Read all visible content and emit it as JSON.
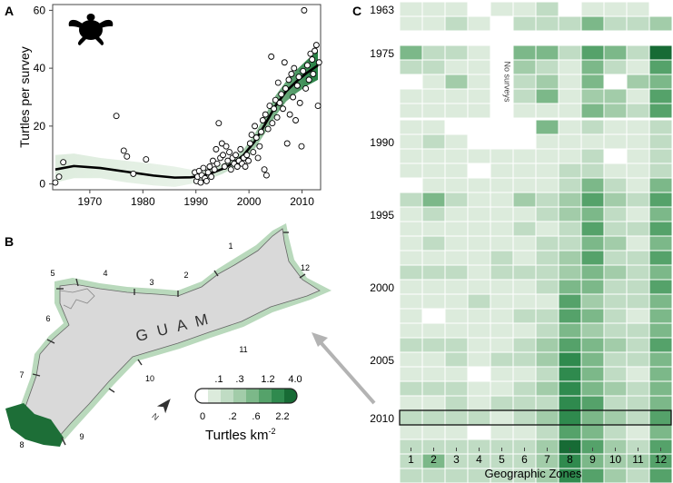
{
  "panels": {
    "a": {
      "letter": "A"
    },
    "b": {
      "letter": "B"
    },
    "c": {
      "letter": "C"
    }
  },
  "chart_data": [
    {
      "type": "scatter",
      "panel": "A",
      "ylabel": "Turtles per survey",
      "xlabel": "",
      "xlim": [
        1963,
        2013.5
      ],
      "ylim": [
        -2,
        62
      ],
      "xticks": [
        1970,
        1980,
        1990,
        2000,
        2010
      ],
      "yticks": [
        0,
        20,
        40,
        60
      ],
      "icon": "sea-turtle-silhouette",
      "trend_color": "#1b7a3a",
      "points": [
        [
          1963.5,
          0.5
        ],
        [
          1964.2,
          2.5
        ],
        [
          1965.0,
          7.5
        ],
        [
          1975.0,
          23.5
        ],
        [
          1976.4,
          11.5
        ],
        [
          1977.0,
          9.5
        ],
        [
          1978.2,
          3.5
        ],
        [
          1980.6,
          8.5
        ],
        [
          1989.8,
          4
        ],
        [
          1990.1,
          1
        ],
        [
          1990.3,
          2.5
        ],
        [
          1990.6,
          4.5
        ],
        [
          1990.9,
          0.5
        ],
        [
          1991.1,
          3
        ],
        [
          1991.4,
          5.5
        ],
        [
          1991.7,
          2
        ],
        [
          1992.0,
          1
        ],
        [
          1992.3,
          4
        ],
        [
          1992.6,
          6
        ],
        [
          1992.9,
          2.5
        ],
        [
          1993.2,
          8
        ],
        [
          1993.5,
          5
        ],
        [
          1993.8,
          12
        ],
        [
          1994.0,
          7
        ],
        [
          1994.3,
          21
        ],
        [
          1994.6,
          9
        ],
        [
          1994.9,
          14
        ],
        [
          1995.1,
          10
        ],
        [
          1995.4,
          6
        ],
        [
          1995.7,
          13
        ],
        [
          1996.0,
          8
        ],
        [
          1996.3,
          11
        ],
        [
          1996.6,
          5
        ],
        [
          1996.9,
          9
        ],
        [
          1997.2,
          7
        ],
        [
          1997.5,
          10
        ],
        [
          1997.8,
          6
        ],
        [
          1998.1,
          8
        ],
        [
          1998.4,
          12
        ],
        [
          1998.7,
          7
        ],
        [
          1999.0,
          9
        ],
        [
          1999.3,
          6
        ],
        [
          1999.6,
          10
        ],
        [
          1999.9,
          8
        ],
        [
          2000.2,
          14
        ],
        [
          2000.5,
          17
        ],
        [
          2000.8,
          11
        ],
        [
          2001.1,
          20
        ],
        [
          2001.4,
          16
        ],
        [
          2001.7,
          9
        ],
        [
          2002.0,
          13
        ],
        [
          2002.3,
          18
        ],
        [
          2002.6,
          22
        ],
        [
          2002.9,
          5
        ],
        [
          2003.1,
          24
        ],
        [
          2003.3,
          3
        ],
        [
          2003.6,
          19
        ],
        [
          2003.9,
          27
        ],
        [
          2004.2,
          44
        ],
        [
          2004.4,
          21
        ],
        [
          2004.7,
          26
        ],
        [
          2005.0,
          29
        ],
        [
          2005.3,
          23
        ],
        [
          2005.5,
          35
        ],
        [
          2005.8,
          28
        ],
        [
          2006.1,
          31
        ],
        [
          2006.4,
          26
        ],
        [
          2006.7,
          42
        ],
        [
          2006.9,
          33
        ],
        [
          2007.2,
          14
        ],
        [
          2007.5,
          36
        ],
        [
          2007.7,
          24
        ],
        [
          2008.0,
          38
        ],
        [
          2008.3,
          30
        ],
        [
          2008.5,
          40
        ],
        [
          2008.8,
          22
        ],
        [
          2009.1,
          34
        ],
        [
          2009.4,
          37
        ],
        [
          2009.6,
          28
        ],
        [
          2009.9,
          13
        ],
        [
          2010.2,
          39
        ],
        [
          2010.4,
          60
        ],
        [
          2010.7,
          33
        ],
        [
          2011.0,
          41
        ],
        [
          2011.3,
          36
        ],
        [
          2011.6,
          45
        ],
        [
          2011.9,
          43
        ],
        [
          2012.1,
          38
        ],
        [
          2012.4,
          46
        ],
        [
          2012.7,
          48
        ],
        [
          2013.0,
          27
        ],
        [
          2013.2,
          42
        ]
      ],
      "trend": [
        [
          1963.5,
          5
        ],
        [
          1967,
          6.2
        ],
        [
          1972,
          5.5
        ],
        [
          1977,
          4.2
        ],
        [
          1982,
          2.9
        ],
        [
          1986,
          2.2
        ],
        [
          1989,
          2.3
        ],
        [
          1991,
          2.8
        ],
        [
          1993,
          3.8
        ],
        [
          1995,
          5.2
        ],
        [
          1997,
          7.2
        ],
        [
          1999,
          10
        ],
        [
          2001,
          14.5
        ],
        [
          2003,
          20.5
        ],
        [
          2005,
          27
        ],
        [
          2007,
          32
        ],
        [
          2009,
          35.5
        ],
        [
          2011,
          38.5
        ],
        [
          2013,
          41
        ]
      ],
      "band_upper": [
        [
          1963.5,
          10
        ],
        [
          1967,
          10.5
        ],
        [
          1972,
          9
        ],
        [
          1977,
          8
        ],
        [
          1982,
          7
        ],
        [
          1986,
          6
        ],
        [
          1989,
          5
        ],
        [
          1991,
          5
        ],
        [
          1993,
          5.5
        ],
        [
          1995,
          7
        ],
        [
          1997,
          9
        ],
        [
          1999,
          12
        ],
        [
          2001,
          17
        ],
        [
          2003,
          23.5
        ],
        [
          2005,
          30.5
        ],
        [
          2007,
          35.5
        ],
        [
          2009,
          39.5
        ],
        [
          2011,
          43
        ],
        [
          2013,
          46
        ]
      ],
      "band_lower": [
        [
          1963.5,
          0.5
        ],
        [
          1967,
          2
        ],
        [
          1972,
          2
        ],
        [
          1977,
          0.5
        ],
        [
          1982,
          -0.5
        ],
        [
          1986,
          -1
        ],
        [
          1989,
          0
        ],
        [
          1991,
          0.8
        ],
        [
          1993,
          2
        ],
        [
          1995,
          3.5
        ],
        [
          1997,
          5.5
        ],
        [
          1999,
          8
        ],
        [
          2001,
          12
        ],
        [
          2003,
          17.5
        ],
        [
          2005,
          23.5
        ],
        [
          2007,
          28.5
        ],
        [
          2009,
          31.5
        ],
        [
          2011,
          34
        ],
        [
          2013,
          36
        ]
      ]
    },
    {
      "type": "heatmap",
      "panel": "C",
      "xlabel": "Geographic Zones",
      "zones": [
        "1",
        "2",
        "3",
        "4",
        "5",
        "6",
        "7",
        "8",
        "9",
        "10",
        "11",
        "12"
      ],
      "year_tick_labels": [
        "1963",
        "1975",
        "1990",
        "1995",
        "2000",
        "2005",
        "2010"
      ],
      "no_survey_label": "No surveys",
      "color_scale": {
        "breaks": [
          0,
          0.1,
          0.2,
          0.3,
          0.6,
          1.2,
          2.2,
          4.0
        ],
        "colors": [
          "#ffffff",
          "#dcebdc",
          "#c0dcc4",
          "#a2cca9",
          "#7cb889",
          "#55a26a",
          "#2f8a4e",
          "#176b35"
        ]
      },
      "legend_position": "bottom",
      "highlighted_year": "2010",
      "levels": [
        [
          1,
          1,
          1,
          0,
          1,
          1,
          2,
          0,
          1,
          1,
          1,
          0
        ],
        [
          1,
          1,
          2,
          1,
          0,
          2,
          2,
          2,
          4,
          2,
          2,
          3
        ],
        [
          4,
          2,
          2,
          1,
          null,
          4,
          4,
          2,
          5,
          4,
          2,
          7
        ],
        [
          2,
          2,
          1,
          1,
          null,
          3,
          2,
          1,
          4,
          2,
          1,
          5
        ],
        [
          0,
          1,
          3,
          1,
          null,
          2,
          3,
          1,
          4,
          0,
          3,
          4
        ],
        [
          1,
          1,
          1,
          1,
          null,
          2,
          4,
          1,
          3,
          3,
          1,
          5
        ],
        [
          1,
          1,
          1,
          1,
          null,
          1,
          1,
          1,
          4,
          3,
          2,
          5
        ],
        [
          1,
          1,
          0,
          0,
          0,
          0,
          4,
          1,
          2,
          1,
          1,
          2
        ],
        [
          1,
          2,
          1,
          0,
          0,
          0,
          1,
          1,
          1,
          1,
          1,
          2
        ],
        [
          1,
          1,
          1,
          1,
          1,
          1,
          1,
          1,
          2,
          0,
          1,
          2
        ],
        [
          1,
          1,
          1,
          0,
          1,
          1,
          1,
          2,
          2,
          1,
          1,
          2
        ],
        [
          0,
          1,
          1,
          1,
          1,
          1,
          1,
          2,
          4,
          2,
          1,
          4
        ],
        [
          2,
          4,
          2,
          1,
          1,
          3,
          2,
          3,
          5,
          3,
          2,
          5
        ],
        [
          1,
          2,
          1,
          1,
          1,
          1,
          2,
          3,
          4,
          2,
          1,
          4
        ],
        [
          1,
          1,
          1,
          1,
          1,
          2,
          1,
          2,
          5,
          2,
          2,
          5
        ],
        [
          1,
          2,
          1,
          1,
          1,
          1,
          2,
          2,
          4,
          3,
          1,
          4
        ],
        [
          1,
          1,
          1,
          1,
          2,
          1,
          2,
          3,
          5,
          2,
          2,
          5
        ],
        [
          2,
          2,
          2,
          1,
          2,
          2,
          2,
          3,
          4,
          3,
          2,
          4
        ],
        [
          1,
          1,
          1,
          1,
          1,
          1,
          2,
          4,
          4,
          2,
          2,
          5
        ],
        [
          1,
          1,
          1,
          2,
          1,
          1,
          1,
          5,
          3,
          2,
          2,
          4
        ],
        [
          1,
          0,
          1,
          1,
          1,
          2,
          2,
          5,
          4,
          2,
          1,
          4
        ],
        [
          1,
          1,
          1,
          1,
          1,
          1,
          2,
          4,
          3,
          2,
          2,
          4
        ],
        [
          2,
          2,
          2,
          1,
          1,
          2,
          3,
          5,
          4,
          3,
          2,
          5
        ],
        [
          1,
          1,
          2,
          1,
          2,
          2,
          3,
          6,
          4,
          2,
          2,
          4
        ],
        [
          1,
          1,
          1,
          0,
          1,
          1,
          2,
          6,
          4,
          2,
          1,
          4
        ],
        [
          2,
          2,
          2,
          1,
          1,
          2,
          3,
          6,
          4,
          3,
          2,
          4
        ],
        [
          1,
          1,
          2,
          1,
          2,
          2,
          2,
          6,
          5,
          2,
          2,
          4
        ],
        [
          2,
          2,
          2,
          2,
          1,
          2,
          3,
          6,
          4,
          3,
          2,
          5
        ],
        [
          1,
          1,
          1,
          0,
          1,
          1,
          2,
          5,
          4,
          2,
          1,
          4
        ],
        [
          2,
          2,
          2,
          2,
          2,
          2,
          3,
          7,
          5,
          3,
          2,
          5
        ],
        [
          2,
          4,
          2,
          2,
          2,
          2,
          3,
          6,
          4,
          3,
          3,
          5
        ],
        [
          2,
          2,
          2,
          2,
          2,
          2,
          3,
          6,
          5,
          3,
          2,
          5
        ]
      ]
    }
  ],
  "map": {
    "island_name": "G U A M",
    "zone_labels": [
      "1",
      "2",
      "3",
      "4",
      "5",
      "6",
      "7",
      "8",
      "9",
      "10",
      "11",
      "12"
    ],
    "north_label": "N",
    "legend": {
      "title": "Turtles km",
      "title_exponent": "-2",
      "upper_labels": [
        ".1",
        ".3",
        "1.2",
        "4.0"
      ],
      "lower_labels": [
        "0",
        ".2",
        ".6",
        "2.2"
      ],
      "colors": [
        "#ffffff",
        "#dcebdc",
        "#c0dcc4",
        "#a2cca9",
        "#7cb889",
        "#55a26a",
        "#2f8a4e",
        "#176b35"
      ]
    },
    "colors": {
      "land": "#d9d9d9",
      "coast_band": "#b9d9bc",
      "zone8": "#1d6e37",
      "arrow": "#b3b3b3"
    }
  }
}
